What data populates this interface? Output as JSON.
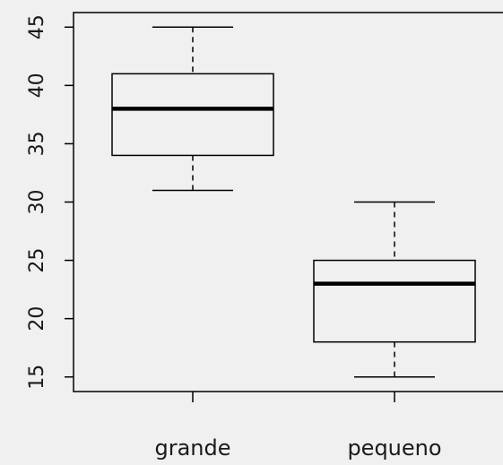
{
  "chart_data": {
    "type": "box",
    "title": "",
    "xlabel": "",
    "ylabel": "",
    "categories": [
      "grande",
      "pequeno"
    ],
    "boxes": [
      {
        "category": "grande",
        "min": 31,
        "q1": 34,
        "median": 38,
        "q3": 41,
        "max": 45
      },
      {
        "category": "pequeno",
        "min": 15,
        "q1": 18,
        "median": 23,
        "q3": 25,
        "max": 30
      }
    ],
    "yticks": [
      15,
      20,
      25,
      30,
      35,
      40,
      45
    ],
    "yticklabels": [
      "15",
      "20",
      "25",
      "30",
      "35",
      "40",
      "45"
    ],
    "ylim": [
      13.75,
      46.25
    ],
    "grid": false,
    "colors": {
      "background": "#f0f0f0",
      "stroke": "#000000",
      "box_fill": "#f0f0f0"
    }
  }
}
